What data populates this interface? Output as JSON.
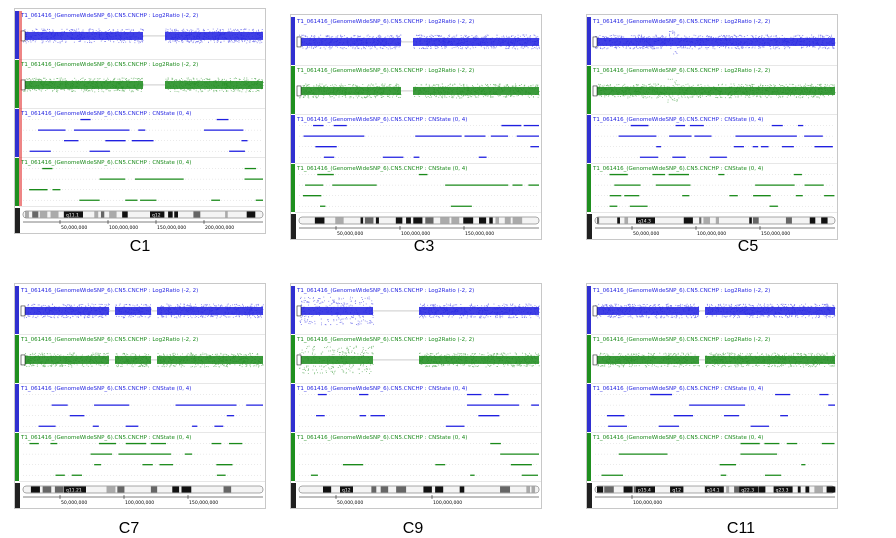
{
  "figure": {
    "track_titles": {
      "log2_ratio": "T1_061416_(GenomeWideSNP_6).CN5.CNCHP : Log2Ratio (-2, 2)",
      "cn_state": "T1_061416_(GenomeWideSNP_6).CN5.CNCHP : CNState (0, 4)"
    },
    "colors": {
      "track_blue": "#1f1fe0",
      "track_green": "#1a8a1a",
      "sidebar_blue": "#3030d0",
      "sidebar_green": "#1f8f1f",
      "ideogram_dark": "#202020"
    },
    "panels": [
      {
        "caption": "C1",
        "axis_labels": [
          "50,000,000",
          "100,000,000",
          "150,000,000",
          "200,000,000"
        ],
        "band_labels": [
          "q11.1",
          "q12"
        ],
        "pattern": "gap_center",
        "red_marker": true
      },
      {
        "caption": "C3",
        "axis_labels": [
          "50,000,000",
          "100,000,000",
          "150,000,000"
        ],
        "band_labels": [],
        "pattern": "gap_mid",
        "red_marker": false
      },
      {
        "caption": "C5",
        "axis_labels": [
          "50,000,000",
          "100,000,000",
          "150,000,000"
        ],
        "band_labels": [
          "q14.3"
        ],
        "pattern": "dips_left",
        "red_marker": false
      },
      {
        "caption": "C7",
        "axis_labels": [
          "50,000,000",
          "100,000,000",
          "150,000,000"
        ],
        "band_labels": [
          "q11.21"
        ],
        "pattern": "gaps_two",
        "red_marker": false
      },
      {
        "caption": "C9",
        "axis_labels": [
          "50,000,000",
          "100,000,000"
        ],
        "band_labels": [
          "q12"
        ],
        "pattern": "noisy_left",
        "red_marker": false
      },
      {
        "caption": "C11",
        "axis_labels": [
          "100,000,000"
        ],
        "band_labels": [
          "p15.4",
          "q12",
          "q14.1",
          "q22.3",
          "q23.3"
        ],
        "pattern": "gap_center_small",
        "red_marker": false
      }
    ]
  }
}
